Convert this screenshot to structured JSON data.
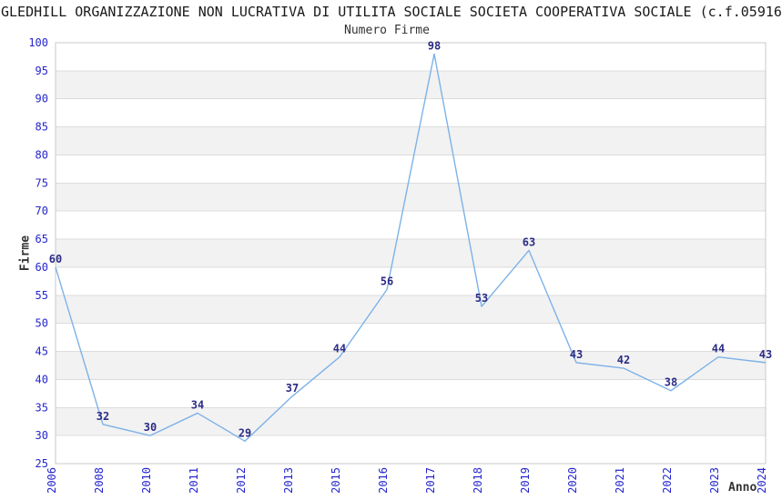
{
  "chart_data": {
    "type": "line",
    "title": "GLEDHILL ORGANIZZAZIONE NON LUCRATIVA DI UTILITA SOCIALE SOCIETA COOPERATIVA SOCIALE (c.f.05916",
    "subtitle": "Numero Firme",
    "xlabel": "Anno",
    "ylabel": "Firme",
    "categories": [
      "2006",
      "2008",
      "2010",
      "2011",
      "2012",
      "2013",
      "2015",
      "2016",
      "2017",
      "2018",
      "2019",
      "2020",
      "2021",
      "2022",
      "2023",
      "2024"
    ],
    "values": [
      60,
      32,
      30,
      34,
      29,
      37,
      44,
      56,
      98,
      53,
      63,
      43,
      42,
      38,
      44,
      43
    ],
    "ylim": [
      25,
      100
    ],
    "ytick_step": 5,
    "legend": "none",
    "grid": "horizontal gridlines every 5 units with alternating white/gray bands",
    "data_labels_shown": true,
    "colors": {
      "line": "#7db2e8",
      "tick_label": "#2525cd",
      "data_label": "#2c2c87",
      "band_fill": "#f2f2f2",
      "grid_line": "#dcdcdc",
      "plot_border": "#c8c8c8",
      "title_text": "#1a1a1a",
      "axis_title_text": "#333333",
      "background": "#ffffff"
    }
  }
}
